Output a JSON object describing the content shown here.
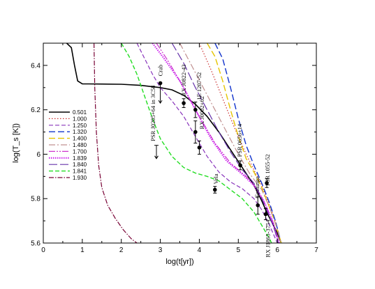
{
  "chart_data": {
    "type": "line",
    "xlabel": "log(t[yr])",
    "ylabel": "log(T_s [K])",
    "xlim": [
      0,
      7
    ],
    "ylim": [
      5.6,
      6.5
    ],
    "xticks": [
      0,
      1,
      2,
      3,
      4,
      5,
      6,
      7
    ],
    "yticks": [
      5.6,
      5.8,
      6,
      6.2,
      6.4
    ],
    "grid": false,
    "legend_position": "left",
    "series": [
      {
        "name": "0.501",
        "color": "#000000",
        "dash": "solid",
        "width": 1.6,
        "points": [
          [
            0.6,
            6.5
          ],
          [
            0.72,
            6.48
          ],
          [
            0.8,
            6.4
          ],
          [
            0.88,
            6.33
          ],
          [
            1.0,
            6.317
          ],
          [
            1.5,
            6.316
          ],
          [
            2.0,
            6.315
          ],
          [
            2.5,
            6.31
          ],
          [
            3.0,
            6.3
          ],
          [
            3.3,
            6.29
          ],
          [
            3.6,
            6.265
          ],
          [
            3.9,
            6.225
          ],
          [
            4.2,
            6.17
          ],
          [
            4.5,
            6.1
          ],
          [
            4.8,
            6.02
          ],
          [
            5.1,
            5.94
          ],
          [
            5.4,
            5.86
          ],
          [
            5.6,
            5.79
          ],
          [
            5.75,
            5.73
          ],
          [
            5.9,
            5.68
          ],
          [
            6.0,
            5.645
          ],
          [
            6.1,
            5.6
          ]
        ]
      },
      {
        "name": "1.000",
        "color": "#cc3333",
        "dash": "1.5,2.5",
        "width": 1.2,
        "points": [
          [
            4.0,
            6.5
          ],
          [
            4.3,
            6.38
          ],
          [
            4.6,
            6.25
          ],
          [
            4.9,
            6.12
          ],
          [
            5.2,
            6.0
          ],
          [
            5.4,
            5.93
          ],
          [
            5.6,
            5.86
          ],
          [
            5.8,
            5.77
          ],
          [
            5.95,
            5.7
          ],
          [
            6.1,
            5.6
          ]
        ]
      },
      {
        "name": "1.250",
        "color": "#8833bb",
        "dash": "6,3",
        "width": 1.2,
        "points": [
          [
            2.4,
            6.5
          ],
          [
            2.6,
            6.43
          ],
          [
            2.8,
            6.36
          ],
          [
            3.0,
            6.3
          ],
          [
            3.3,
            6.24
          ],
          [
            3.6,
            6.17
          ],
          [
            3.9,
            6.08
          ],
          [
            4.2,
            5.99
          ],
          [
            4.5,
            5.92
          ],
          [
            4.8,
            5.875
          ],
          [
            5.1,
            5.845
          ],
          [
            5.4,
            5.8
          ],
          [
            5.6,
            5.75
          ],
          [
            5.8,
            5.68
          ],
          [
            5.95,
            5.62
          ],
          [
            6.0,
            5.6
          ]
        ]
      },
      {
        "name": "1.320",
        "color": "#1133cc",
        "dash": "9,4",
        "width": 1.4,
        "points": [
          [
            4.4,
            6.5
          ],
          [
            4.6,
            6.43
          ],
          [
            4.8,
            6.3
          ],
          [
            5.0,
            6.16
          ],
          [
            5.2,
            6.04
          ],
          [
            5.4,
            5.95
          ],
          [
            5.6,
            5.87
          ],
          [
            5.8,
            5.78
          ],
          [
            5.95,
            5.7
          ],
          [
            6.1,
            5.6
          ]
        ]
      },
      {
        "name": "1.400",
        "color": "#e5c400",
        "dash": "9,4",
        "width": 1.4,
        "points": [
          [
            4.2,
            6.5
          ],
          [
            4.4,
            6.44
          ],
          [
            4.6,
            6.33
          ],
          [
            4.8,
            6.2
          ],
          [
            5.0,
            6.08
          ],
          [
            5.2,
            5.98
          ],
          [
            5.4,
            5.92
          ],
          [
            5.6,
            5.85
          ],
          [
            5.8,
            5.76
          ],
          [
            5.95,
            5.69
          ],
          [
            6.1,
            5.6
          ]
        ]
      },
      {
        "name": "1.480",
        "color": "#c09090",
        "dash": "9,3,2,3",
        "width": 1.2,
        "points": [
          [
            3.5,
            6.5
          ],
          [
            3.8,
            6.4
          ],
          [
            4.1,
            6.3
          ],
          [
            4.4,
            6.2
          ],
          [
            4.7,
            6.1
          ],
          [
            5.0,
            6.0
          ],
          [
            5.3,
            5.91
          ],
          [
            5.6,
            5.84
          ],
          [
            5.8,
            5.76
          ],
          [
            5.95,
            5.69
          ],
          [
            6.1,
            5.6
          ]
        ]
      },
      {
        "name": "1.700",
        "color": "#cc33cc",
        "dash": "9,2,2,2,2,2",
        "width": 1.2,
        "points": [
          [
            2.9,
            6.5
          ],
          [
            3.2,
            6.42
          ],
          [
            3.6,
            6.3
          ],
          [
            4.0,
            6.17
          ],
          [
            4.4,
            6.05
          ],
          [
            4.8,
            5.96
          ],
          [
            5.2,
            5.9
          ],
          [
            5.5,
            5.84
          ],
          [
            5.7,
            5.77
          ],
          [
            5.9,
            5.69
          ],
          [
            6.05,
            5.6
          ]
        ]
      },
      {
        "name": "1.839",
        "color": "#cc22ee",
        "dash": "1.5,1.5",
        "width": 2.2,
        "points": [
          [
            2.8,
            6.5
          ],
          [
            3.1,
            6.43
          ],
          [
            3.5,
            6.33
          ],
          [
            3.9,
            6.2
          ],
          [
            4.3,
            6.07
          ],
          [
            4.7,
            5.97
          ],
          [
            5.1,
            5.91
          ],
          [
            5.4,
            5.86
          ],
          [
            5.65,
            5.79
          ],
          [
            5.85,
            5.71
          ],
          [
            6.0,
            5.62
          ],
          [
            6.05,
            5.6
          ]
        ]
      },
      {
        "name": "1.840",
        "color": "#6633aa",
        "dash": "12,4",
        "width": 1.2,
        "points": [
          [
            3.3,
            6.5
          ],
          [
            3.6,
            6.41
          ],
          [
            3.9,
            6.3
          ],
          [
            4.2,
            6.2
          ],
          [
            4.5,
            6.1
          ],
          [
            4.8,
            6.01
          ],
          [
            5.1,
            5.93
          ],
          [
            5.4,
            5.87
          ],
          [
            5.6,
            5.8
          ],
          [
            5.8,
            5.72
          ],
          [
            5.95,
            5.65
          ],
          [
            6.02,
            5.6
          ]
        ]
      },
      {
        "name": "1.841",
        "color": "#22dd22",
        "dash": "6,3",
        "width": 1.4,
        "points": [
          [
            2.0,
            6.5
          ],
          [
            2.2,
            6.44
          ],
          [
            2.4,
            6.36
          ],
          [
            2.6,
            6.26
          ],
          [
            2.8,
            6.16
          ],
          [
            3.0,
            6.07
          ],
          [
            3.3,
            5.99
          ],
          [
            3.6,
            5.94
          ],
          [
            3.9,
            5.915
          ],
          [
            4.2,
            5.9
          ],
          [
            4.5,
            5.88
          ],
          [
            4.8,
            5.84
          ],
          [
            5.1,
            5.8
          ],
          [
            5.4,
            5.74
          ],
          [
            5.6,
            5.68
          ],
          [
            5.8,
            5.62
          ],
          [
            5.85,
            5.6
          ]
        ]
      },
      {
        "name": "1.930",
        "color": "#770033",
        "dash": "7,2,1.5,2",
        "width": 1.2,
        "points": [
          [
            1.3,
            6.5
          ],
          [
            1.32,
            6.3
          ],
          [
            1.36,
            6.1
          ],
          [
            1.42,
            5.95
          ],
          [
            1.5,
            5.85
          ],
          [
            1.65,
            5.77
          ],
          [
            1.85,
            5.71
          ],
          [
            2.05,
            5.66
          ],
          [
            2.25,
            5.62
          ],
          [
            2.4,
            5.6
          ]
        ]
      }
    ],
    "observations": [
      {
        "label": "Crab",
        "x": 3.0,
        "y": 6.32,
        "yerr": 0,
        "upper_limit": true,
        "limit_to": 6.23
      },
      {
        "label": "RX J0822-43",
        "x": 3.6,
        "y": 6.23,
        "yerr": 0.02,
        "upper_limit": false
      },
      {
        "label": "1E 1207-52",
        "x": 3.9,
        "y": 6.2,
        "yerr": 0.035,
        "upper_limit": false
      },
      {
        "label": "RX J0002+62",
        "x": 3.9,
        "y": 6.1,
        "yerr": 0.05,
        "upper_limit": false
      },
      {
        "label": "PSR J0205+64 in 3C58",
        "x": 2.9,
        "y": 6.04,
        "yerr": 0,
        "upper_limit": true,
        "limit_to": 5.98
      },
      {
        "label": "",
        "x": 4.0,
        "y": 6.03,
        "yerr": 0.03,
        "upper_limit": false
      },
      {
        "label": "PSR 0656+14",
        "x": 5.05,
        "y": 5.95,
        "yerr": 0.02,
        "upper_limit": false
      },
      {
        "label": "Vela",
        "x": 4.4,
        "y": 5.84,
        "yerr": 0.015,
        "upper_limit": false
      },
      {
        "label": "Geminga",
        "x": 5.5,
        "y": 5.77,
        "yerr": 0.04,
        "upper_limit": false
      },
      {
        "label": "PSR 1055-52",
        "x": 5.73,
        "y": 5.87,
        "yerr": 0.02,
        "upper_limit": false
      },
      {
        "label": "RX J1865-3754",
        "x": 5.7,
        "y": 5.73,
        "yerr": 0.025,
        "upper_limit": false
      }
    ]
  }
}
